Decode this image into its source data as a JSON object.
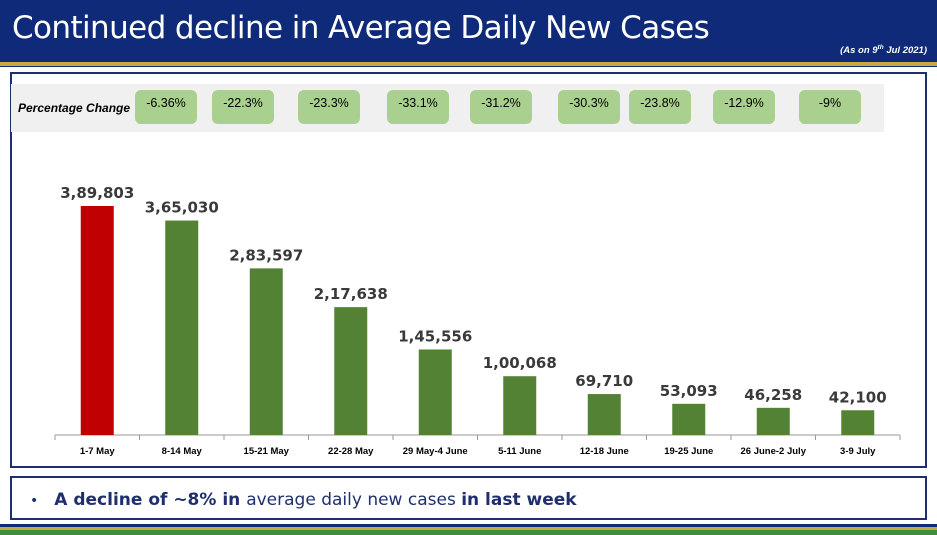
{
  "header": {
    "title": "Continued decline in Average Daily New Cases",
    "date_prefix": "(As on 9",
    "date_sup": "th",
    "date_suffix": " Jul 2021)"
  },
  "percentage_change": {
    "label": "Percentage Change",
    "values": [
      "-6.36%",
      "-22.3%",
      "-23.3%",
      "-33.1%",
      "-31.2%",
      "-30.3%",
      "-23.8%",
      "-12.9%",
      "-9%"
    ]
  },
  "colors": {
    "header_bg": "#0e2a78",
    "accent_gold": "#c8aa3c",
    "bar_highlight": "#c00000",
    "bar_default": "#548235",
    "pct_box": "#a9d08e",
    "text_navy": "#1f2f6e"
  },
  "chart_data": {
    "type": "bar",
    "categories": [
      "1-7 May",
      "8-14 May",
      "15-21 May",
      "22-28 May",
      "29 May-4 June",
      "5-11 June",
      "12-18 June",
      "19-25 June",
      "26 June-2 July",
      "3-9 July"
    ],
    "values": [
      389803,
      365030,
      283597,
      217638,
      145556,
      100068,
      69710,
      53093,
      46258,
      42100
    ],
    "value_labels": [
      "3,89,803",
      "3,65,030",
      "2,83,597",
      "2,17,638",
      "1,45,556",
      "1,00,068",
      "69,710",
      "53,093",
      "46,258",
      "42,100"
    ],
    "highlight_index": 0,
    "title": "",
    "xlabel": "",
    "ylabel": "",
    "ylim": [
      0,
      400000
    ]
  },
  "summary": {
    "bullet": "•",
    "parts": [
      {
        "text": "A decline of ~8% in ",
        "bold": true
      },
      {
        "text": "average daily new cases ",
        "bold": false
      },
      {
        "text": "in last week",
        "bold": true
      }
    ]
  }
}
